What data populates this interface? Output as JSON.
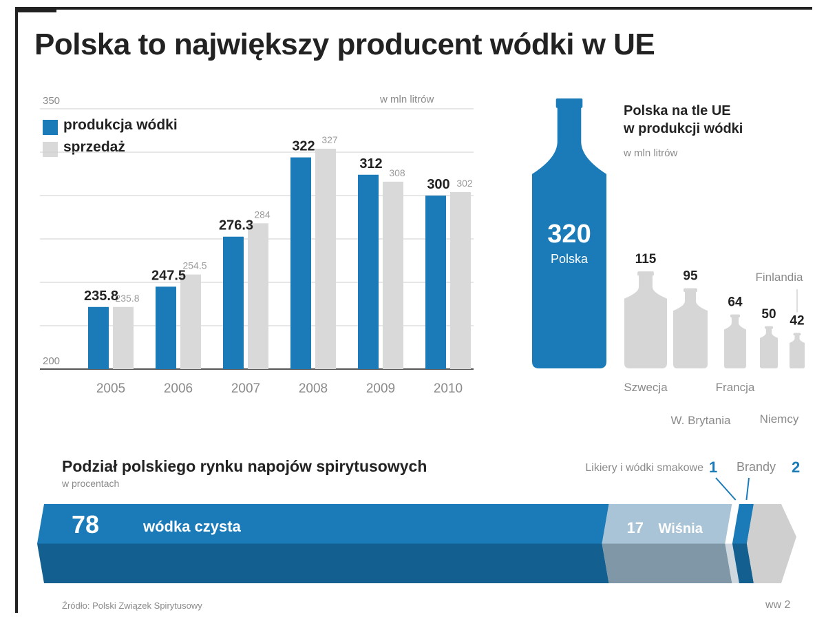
{
  "title": "Polska to największy producent wódki w UE",
  "footer": {
    "source": "Źródło: Polski Związek Spirytusowy",
    "credit": "ww 2"
  },
  "colors": {
    "production": "#1a7bb8",
    "sales": "#d9d9d9",
    "bottle_gray": "#d6d6d6",
    "pink": "#dddddd"
  },
  "chart_data": [
    {
      "type": "bar",
      "unit_label": "w mln litrów",
      "y_top_label": "350",
      "y_bottom_label": "200",
      "ylim": [
        200,
        350
      ],
      "categories": [
        "2005",
        "2006",
        "2007",
        "2008",
        "2009",
        "2010"
      ],
      "series": [
        {
          "name": "produkcja wódki",
          "values": [
            235.8,
            247.5,
            276.3,
            322,
            312,
            300
          ],
          "labels": [
            "235.8",
            "247.5",
            "276.3",
            "322",
            "312",
            "300"
          ]
        },
        {
          "name": "sprzedaż",
          "values": [
            235.8,
            254.5,
            284,
            327,
            308,
            302
          ],
          "labels": [
            "235.8",
            "254.5",
            "284",
            "327",
            "308",
            "302"
          ]
        }
      ],
      "legend": "top-left",
      "grid": true
    },
    {
      "type": "bar",
      "title": "Polska na tle UE\nw produkcji wódki",
      "title_line1": "Polska na tle UE",
      "title_line2": "w produkcji wódki",
      "unit_label": "w mln litrów",
      "categories": [
        "Polska",
        "Szwecja",
        "W. Brytania",
        "Francja",
        "Niemcy",
        "Finlandia"
      ],
      "values": [
        320,
        115,
        95,
        64,
        50,
        42
      ],
      "value_labels": [
        "320",
        "115",
        "95",
        "64",
        "50",
        "42"
      ]
    },
    {
      "type": "bar",
      "title": "Podział polskiego rynku napojów spirytusowych",
      "unit_label": "w procentach",
      "categories": [
        "wódka czysta",
        "Wiśnia",
        "Likiery i wódki smakowe",
        "Brandy"
      ],
      "values": [
        78,
        17,
        1,
        2
      ],
      "value_labels": [
        "78",
        "17",
        "1",
        "2"
      ]
    }
  ]
}
